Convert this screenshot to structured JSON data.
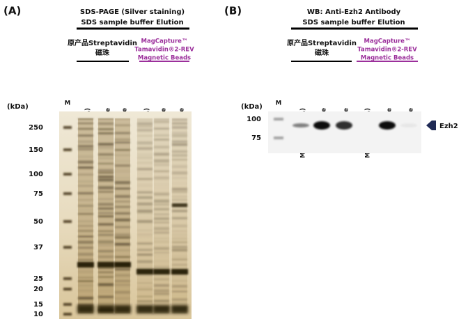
{
  "panels": [
    {
      "label": "(A)",
      "title": "SDS-PAGE (Silver staining)",
      "subtitle": "SDS sample buffer Elution",
      "groups": [
        {
          "lines": [
            "原产品Streptavidin",
            "磁珠"
          ]
        },
        {
          "lines": [
            "MagCapture™",
            "Tamavidin®2-REV",
            "Magnetic Beads"
          ]
        }
      ],
      "marker_lane": "M",
      "lanes": [
        "Mock (No RNA)",
        "Sense",
        "Antisense",
        "Mock (No RNA)",
        "Sense",
        "Antisense"
      ],
      "unit": "(kDa)",
      "markers": [
        250,
        150,
        100,
        75,
        50,
        37,
        25,
        20,
        15,
        10
      ]
    },
    {
      "label": "(B)",
      "title": "WB: Anti-Ezh2 Antibody",
      "subtitle": "SDS sample buffer Elution",
      "groups": [
        {
          "lines": [
            "原产品Streptavidin",
            "磁珠"
          ]
        },
        {
          "lines": [
            "MagCapture™",
            "Tamavidin®2-REV",
            "Magnetic Beads"
          ]
        }
      ],
      "marker_lane": "M",
      "lanes": [
        "Mock (No RNA)",
        "Sense",
        "Antisense",
        "Mock (No RNA)",
        "Sense",
        "Antisense"
      ],
      "unit": "(kDa)",
      "markers": [
        100,
        75
      ],
      "band_label": "Ezh2"
    }
  ]
}
